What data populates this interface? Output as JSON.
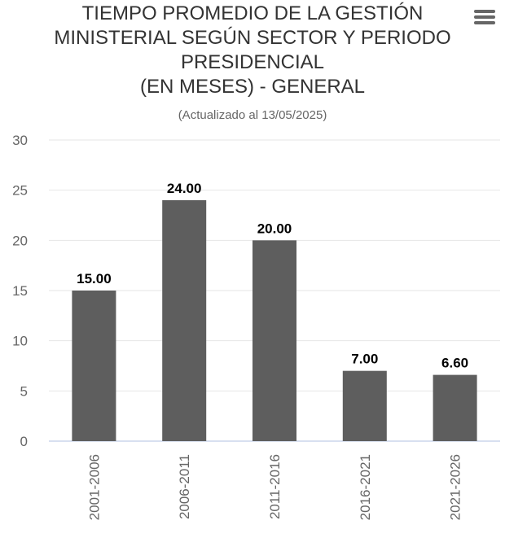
{
  "header": {
    "title_lines": [
      "TIEMPO PROMEDIO DE LA GESTIÓN",
      "MINISTERIAL SEGÚN SECTOR Y PERIODO",
      "PRESIDENCIAL",
      "(EN MESES) - GENERAL"
    ],
    "subtitle": "(Actualizado al 13/05/2025)",
    "menu_icon": "hamburger-menu-icon"
  },
  "chart_data": {
    "type": "bar",
    "title": "TIEMPO PROMEDIO DE LA GESTIÓN MINISTERIAL SEGÚN SECTOR Y PERIODO PRESIDENCIAL (EN MESES) - GENERAL",
    "subtitle": "(Actualizado al 13/05/2025)",
    "categories": [
      "2001-2006",
      "2006-2011",
      "2011-2016",
      "2016-2021",
      "2021-2026"
    ],
    "values": [
      15.0,
      24.0,
      20.0,
      7.0,
      6.6
    ],
    "data_labels": [
      "15.00",
      "24.00",
      "20.00",
      "7.00",
      "6.60"
    ],
    "y_ticks": [
      "0",
      "5",
      "10",
      "15",
      "20",
      "25",
      "30"
    ],
    "ylim": [
      0,
      30
    ],
    "xlabel": "",
    "ylabel": "",
    "grid": true,
    "legend": false,
    "colors": {
      "bar": "#5e5e5e",
      "grid": "#e6e6e6",
      "axis": "#ccd6eb"
    }
  }
}
